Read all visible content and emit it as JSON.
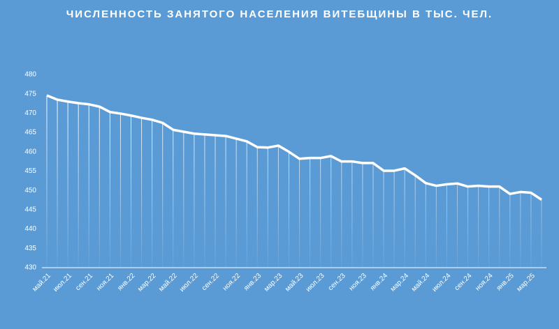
{
  "chart_data": {
    "type": "line",
    "title": "ЧИСЛЕННОСТЬ ЗАНЯТОГО НАСЕЛЕНИЯ ВИТЕБЩИНЫ В ТЫС. ЧЕЛ.",
    "categories": [
      "май.21",
      null,
      "июл.21",
      null,
      "сен.21",
      null,
      "ноя.21",
      null,
      "янв.22",
      null,
      "мар.22",
      null,
      "май.22",
      null,
      "июл.22",
      null,
      "сен.22",
      null,
      "ноя.22",
      null,
      "янв.23",
      null,
      "мар.23",
      null,
      "май.23",
      null,
      "июл.23",
      null,
      "сен.23",
      null,
      "ноя.23",
      null,
      "янв.24",
      null,
      "мар.24",
      null,
      "май.24",
      null,
      "июл.24",
      null,
      "сен.24",
      null,
      "ноя.24",
      null,
      "янв.25",
      null,
      "мар.25",
      null
    ],
    "values": [
      474.6,
      473.5,
      473.0,
      472.6,
      472.3,
      471.7,
      470.3,
      469.9,
      469.4,
      468.8,
      468.3,
      467.5,
      465.7,
      465.2,
      464.7,
      464.5,
      464.3,
      464.1,
      463.4,
      462.7,
      461.2,
      461.1,
      461.6,
      460.0,
      458.2,
      458.4,
      458.4,
      458.9,
      457.5,
      457.5,
      457.1,
      457.1,
      455.1,
      455.1,
      455.7,
      453.9,
      451.9,
      451.2,
      451.6,
      451.8,
      451.0,
      451.2,
      451.0,
      451.0,
      449.1,
      449.6,
      449.4,
      447.6
    ],
    "color": "#ffffff",
    "ylim": [
      430,
      480
    ],
    "yticks": [
      430,
      435,
      440,
      445,
      450,
      455,
      460,
      465,
      470,
      475,
      480
    ],
    "drop_lines": true
  }
}
